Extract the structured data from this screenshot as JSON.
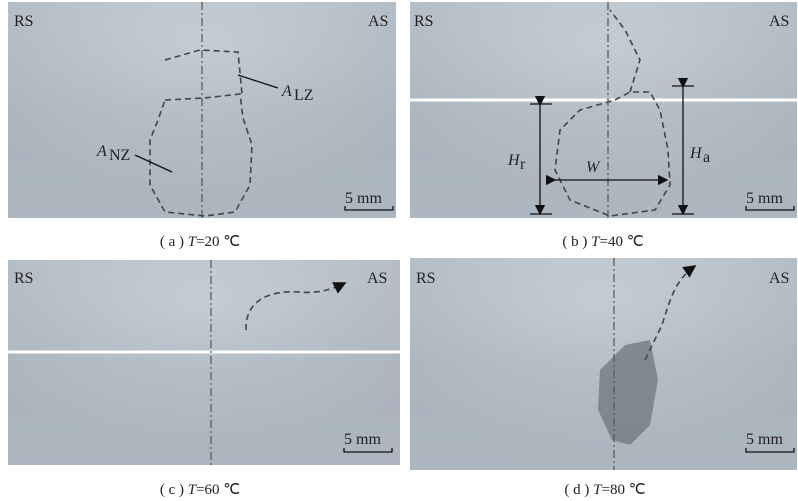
{
  "panels": [
    {
      "left": "RS",
      "right": "AS",
      "scale": "5 mm",
      "caption": {
        "tag": "( a )",
        "variable": "T",
        "rest": "=20 ℃"
      },
      "annotations": [
        {
          "symbol": "A",
          "subscript": "LZ"
        },
        {
          "symbol": "A",
          "subscript": "NZ"
        }
      ]
    },
    {
      "left": "RS",
      "right": "AS",
      "scale": "5 mm",
      "caption": {
        "tag": "( b )",
        "variable": "T",
        "rest": "=40 ℃"
      },
      "annotations": [
        {
          "symbol": "H",
          "subscript": "r"
        },
        {
          "symbol": "W"
        },
        {
          "symbol": "H",
          "subscript": "a"
        }
      ]
    },
    {
      "left": "RS",
      "right": "AS",
      "scale": "5 mm",
      "caption": {
        "tag": "( c )",
        "variable": "T",
        "rest": "=60 ℃"
      }
    },
    {
      "left": "RS",
      "right": "AS",
      "scale": "5 mm",
      "caption": {
        "tag": "( d )",
        "variable": "T",
        "rest": "=80 ℃"
      }
    }
  ]
}
